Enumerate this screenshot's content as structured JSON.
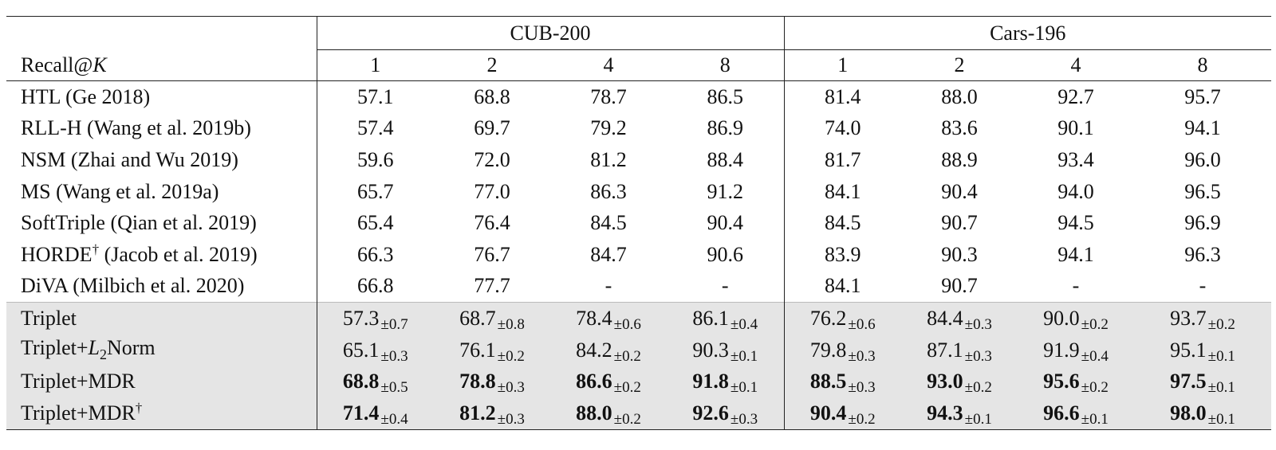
{
  "table": {
    "groups": [
      "CUB-200",
      "Cars-196"
    ],
    "row_header_label": "Recall@K",
    "k_values": [
      "1",
      "2",
      "4",
      "8",
      "1",
      "2",
      "4",
      "8"
    ],
    "baselines": [
      {
        "method": "HTL (Ge 2018)",
        "dagger": false,
        "values": [
          "57.1",
          "68.8",
          "78.7",
          "86.5",
          "81.4",
          "88.0",
          "92.7",
          "95.7"
        ]
      },
      {
        "method": "RLL-H (Wang et al. 2019b)",
        "dagger": false,
        "values": [
          "57.4",
          "69.7",
          "79.2",
          "86.9",
          "74.0",
          "83.6",
          "90.1",
          "94.1"
        ]
      },
      {
        "method": "NSM (Zhai and Wu 2019)",
        "dagger": false,
        "values": [
          "59.6",
          "72.0",
          "81.2",
          "88.4",
          "81.7",
          "88.9",
          "93.4",
          "96.0"
        ]
      },
      {
        "method": "MS (Wang et al. 2019a)",
        "dagger": false,
        "values": [
          "65.7",
          "77.0",
          "86.3",
          "91.2",
          "84.1",
          "90.4",
          "94.0",
          "96.5"
        ]
      },
      {
        "method": "SoftTriple (Qian et al. 2019)",
        "dagger": false,
        "values": [
          "65.4",
          "76.4",
          "84.5",
          "90.4",
          "84.5",
          "90.7",
          "94.5",
          "96.9"
        ]
      },
      {
        "method": "HORDE",
        "method_suffix": " (Jacob et al. 2019)",
        "dagger": true,
        "values": [
          "66.3",
          "76.7",
          "84.7",
          "90.6",
          "83.9",
          "90.3",
          "94.1",
          "96.3"
        ]
      },
      {
        "method": "DiVA (Milbich et al. 2020)",
        "dagger": false,
        "values": [
          "66.8",
          "77.7",
          "-",
          "-",
          "84.1",
          "90.7",
          "-",
          "-"
        ]
      }
    ],
    "ours": [
      {
        "method": "Triplet",
        "bold": false,
        "dagger": false,
        "values": [
          [
            "57.3",
            "±0.7"
          ],
          [
            "68.7",
            "±0.8"
          ],
          [
            "78.4",
            "±0.6"
          ],
          [
            "86.1",
            "±0.4"
          ],
          [
            "76.2",
            "±0.6"
          ],
          [
            "84.4",
            "±0.3"
          ],
          [
            "90.0",
            "±0.2"
          ],
          [
            "93.7",
            "±0.2"
          ]
        ]
      },
      {
        "method": "Triplet+",
        "method_italic": "L",
        "method_sub": "2",
        "method_tail": "Norm",
        "bold": false,
        "dagger": false,
        "values": [
          [
            "65.1",
            "±0.3"
          ],
          [
            "76.1",
            "±0.2"
          ],
          [
            "84.2",
            "±0.2"
          ],
          [
            "90.3",
            "±0.1"
          ],
          [
            "79.8",
            "±0.3"
          ],
          [
            "87.1",
            "±0.3"
          ],
          [
            "91.9",
            "±0.4"
          ],
          [
            "95.1",
            "±0.1"
          ]
        ]
      },
      {
        "method": "Triplet+MDR",
        "bold": true,
        "dagger": false,
        "values": [
          [
            "68.8",
            "±0.5"
          ],
          [
            "78.8",
            "±0.3"
          ],
          [
            "86.6",
            "±0.2"
          ],
          [
            "91.8",
            "±0.1"
          ],
          [
            "88.5",
            "±0.3"
          ],
          [
            "93.0",
            "±0.2"
          ],
          [
            "95.6",
            "±0.2"
          ],
          [
            "97.5",
            "±0.1"
          ]
        ]
      },
      {
        "method": "Triplet+MDR",
        "bold": true,
        "dagger": true,
        "values": [
          [
            "71.4",
            "±0.4"
          ],
          [
            "81.2",
            "±0.3"
          ],
          [
            "88.0",
            "±0.2"
          ],
          [
            "92.6",
            "±0.3"
          ],
          [
            "90.4",
            "±0.2"
          ],
          [
            "94.3",
            "±0.1"
          ],
          [
            "96.6",
            "±0.1"
          ],
          [
            "98.0",
            "±0.1"
          ]
        ]
      }
    ],
    "colors": {
      "highlight_bg": "#e5e5e5",
      "rule": "#222222"
    }
  }
}
